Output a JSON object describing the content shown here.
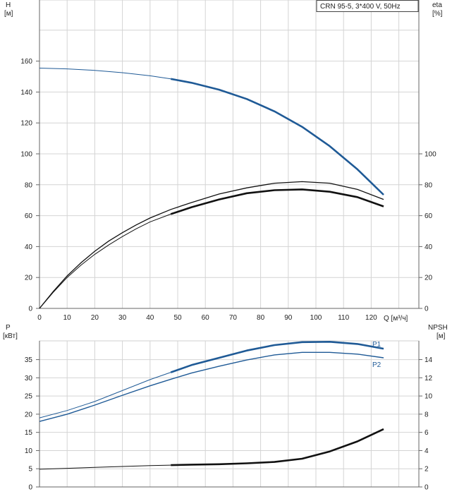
{
  "legend_box": "CRN 95-5, 3*400 V, 50Hz",
  "chart_data": [
    {
      "type": "line",
      "panel": "head-efficiency",
      "y_left_label_top": "H",
      "y_left_label_unit": "[м]",
      "y_right_label_top": "eta",
      "y_right_label_unit": "[%]",
      "xlabel": "Q [м³/ч]",
      "xlim": [
        0,
        130
      ],
      "ylim_left": [
        0,
        180
      ],
      "ylim_right": [
        0,
        180
      ],
      "x_ticks": [
        0,
        10,
        20,
        30,
        40,
        50,
        60,
        70,
        80,
        90,
        100,
        110,
        120
      ],
      "y_left_ticks": [
        0,
        20,
        40,
        60,
        80,
        100,
        120,
        140,
        160
      ],
      "y_right_ticks": [
        0,
        20,
        40,
        60,
        80,
        100
      ],
      "grid": true,
      "series": [
        {
          "name": "H",
          "axis": "left",
          "color": "#1f5a96",
          "x": [
            0,
            10,
            20,
            30,
            40,
            47.5,
            55,
            65,
            75,
            85,
            95,
            105,
            115,
            124.5
          ],
          "y": [
            155.5,
            155,
            154,
            152.5,
            150.5,
            148.5,
            146,
            141.5,
            135.5,
            127.5,
            117.5,
            105,
            90,
            73.5
          ]
        },
        {
          "name": "eta",
          "axis": "right",
          "color": "#111111",
          "x": [
            0,
            5,
            10,
            15,
            20,
            25,
            30,
            35,
            40,
            47.5,
            55,
            65,
            75,
            85,
            95,
            105,
            115,
            124.5
          ],
          "y": [
            0,
            10.5,
            20,
            28,
            35,
            41,
            46.5,
            51.5,
            56,
            61,
            65.5,
            70.5,
            74.5,
            76.5,
            77,
            75.5,
            72,
            66
          ]
        },
        {
          "name": "eta_2",
          "axis": "right",
          "color": "#111111",
          "x": [
            0,
            5,
            10,
            15,
            20,
            25,
            30,
            35,
            40,
            47.5,
            55,
            65,
            75,
            85,
            95,
            105,
            115,
            124.5
          ],
          "y": [
            0,
            11,
            21,
            29.5,
            37,
            43.5,
            49,
            54,
            58.5,
            64,
            68.5,
            74,
            78,
            81,
            82,
            81,
            77,
            70.5
          ]
        }
      ]
    },
    {
      "type": "line",
      "panel": "power-npsh",
      "y_left_label_top": "P",
      "y_left_label_unit": "[кВт]",
      "y_right_label_top": "NPSH",
      "y_right_label_unit": "[м]",
      "xlim": [
        0,
        130
      ],
      "ylim_left": [
        0,
        40
      ],
      "ylim_right": [
        0,
        16
      ],
      "y_left_ticks": [
        0,
        5,
        10,
        15,
        20,
        25,
        30,
        35
      ],
      "y_right_ticks": [
        0,
        2,
        4,
        6,
        8,
        10,
        12,
        14
      ],
      "grid": true,
      "series": [
        {
          "name": "P1",
          "axis": "left",
          "color": "#1f5a96",
          "x": [
            0,
            10,
            20,
            30,
            40,
            47.5,
            55,
            65,
            75,
            85,
            95,
            105,
            115,
            124.5
          ],
          "y": [
            19,
            21,
            23.5,
            26.5,
            29.5,
            31.5,
            33.5,
            35.5,
            37.5,
            39,
            39.8,
            39.9,
            39.3,
            38
          ]
        },
        {
          "name": "P2",
          "axis": "left",
          "color": "#1f5a96",
          "x": [
            0,
            10,
            20,
            30,
            40,
            47.5,
            55,
            65,
            75,
            85,
            95,
            105,
            115,
            124.5
          ],
          "y": [
            18,
            20,
            22.5,
            25.2,
            27.8,
            29.6,
            31.3,
            33.2,
            34.9,
            36.3,
            37,
            37,
            36.5,
            35.5
          ]
        },
        {
          "name": "NPSH",
          "axis": "right",
          "color": "#111111",
          "x": [
            0,
            10,
            20,
            30,
            40,
            47.5,
            55,
            65,
            75,
            85,
            95,
            105,
            115,
            124.5
          ],
          "y": [
            1.95,
            2.05,
            2.15,
            2.25,
            2.35,
            2.4,
            2.45,
            2.5,
            2.6,
            2.75,
            3.1,
            3.9,
            5.0,
            6.35
          ]
        }
      ],
      "series_labels": [
        "P1",
        "P2"
      ]
    }
  ]
}
